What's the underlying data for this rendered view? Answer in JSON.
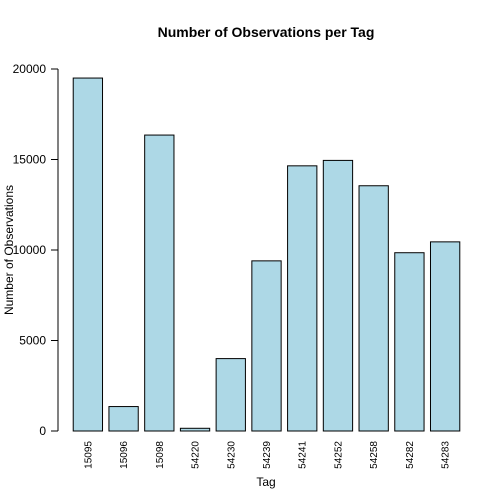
{
  "chart_data": {
    "type": "bar",
    "title": "Number of Observations per Tag",
    "xlabel": "Tag",
    "ylabel": "Number of Observations",
    "categories": [
      "15095",
      "15096",
      "15098",
      "54220",
      "54230",
      "54239",
      "54241",
      "54252",
      "54258",
      "54282",
      "54283"
    ],
    "values": [
      19500,
      1350,
      16350,
      150,
      4000,
      9400,
      14650,
      14950,
      13550,
      9850,
      10450
    ],
    "ylim": [
      0,
      20000
    ],
    "yticks": [
      0,
      5000,
      10000,
      15000,
      20000
    ],
    "ytick_labels": [
      "0",
      "5000",
      "10000",
      "15000",
      "20000"
    ],
    "bar_color": "#add8e6",
    "bar_edge_color": "#000000",
    "grid": false
  }
}
